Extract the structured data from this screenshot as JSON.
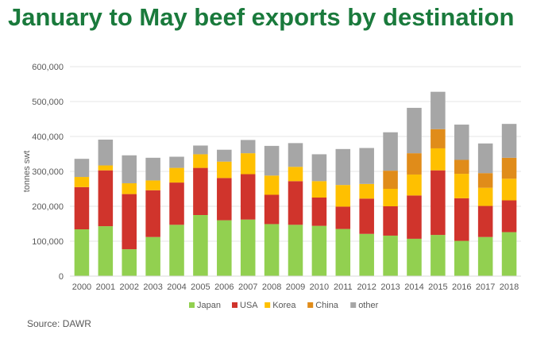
{
  "title": "January to May beef exports by destination",
  "source": "Source: DAWR",
  "chart_data": {
    "type": "bar",
    "stacked": true,
    "title": "January to May beef exports by destination",
    "xlabel": "",
    "ylabel": "tonnes swt",
    "ylim": [
      0,
      600000
    ],
    "yticks": [
      0,
      100000,
      200000,
      300000,
      400000,
      500000,
      600000
    ],
    "ytick_labels": [
      "0",
      "100,000",
      "200,000",
      "300,000",
      "400,000",
      "500,000",
      "600,000"
    ],
    "grid": true,
    "legend_position": "bottom",
    "categories": [
      "2000",
      "2001",
      "2002",
      "2003",
      "2004",
      "2005",
      "2006",
      "2007",
      "2008",
      "2009",
      "2010",
      "2011",
      "2012",
      "2013",
      "2014",
      "2015",
      "2016",
      "2017",
      "2018"
    ],
    "series": [
      {
        "name": "Japan",
        "color": "#92d050",
        "values": [
          134000,
          143000,
          77000,
          112000,
          147000,
          175000,
          160000,
          162000,
          149000,
          147000,
          144000,
          135000,
          121000,
          116000,
          107000,
          118000,
          101000,
          112000,
          126000
        ]
      },
      {
        "name": "USA",
        "color": "#d0342c",
        "values": [
          121000,
          160000,
          158000,
          134000,
          121000,
          135000,
          121000,
          130000,
          84000,
          125000,
          81000,
          64000,
          101000,
          84000,
          124000,
          185000,
          122000,
          89000,
          91000
        ]
      },
      {
        "name": "Korea",
        "color": "#ffc000",
        "values": [
          29000,
          14000,
          31000,
          28000,
          42000,
          39000,
          47000,
          60000,
          55000,
          41000,
          47000,
          62000,
          42000,
          50000,
          60000,
          63000,
          70000,
          52000,
          62000
        ]
      },
      {
        "name": "China",
        "color": "#e08c1a",
        "values": [
          0,
          0,
          0,
          0,
          0,
          0,
          0,
          0,
          0,
          0,
          0,
          0,
          0,
          52000,
          61000,
          55000,
          40000,
          42000,
          60000
        ]
      },
      {
        "name": "other",
        "color": "#a6a6a6",
        "values": [
          52000,
          74000,
          80000,
          65000,
          32000,
          25000,
          34000,
          38000,
          85000,
          68000,
          77000,
          103000,
          103000,
          110000,
          130000,
          107000,
          101000,
          85000,
          97000
        ]
      }
    ]
  }
}
